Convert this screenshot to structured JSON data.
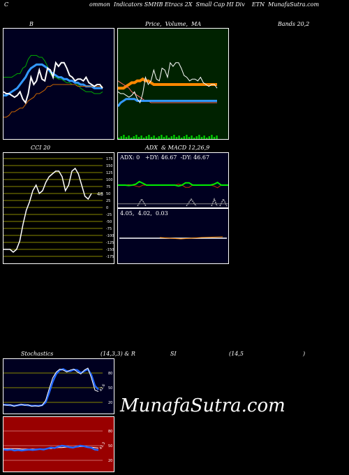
{
  "header": {
    "left_c": "C",
    "title": "ommon  Indicators SMHB Etracs 2X  Small Cap HI Div    ETN  MunafaSutra.com"
  },
  "labels": {
    "b": "B",
    "price_ma": "Price,  Volume,  MA",
    "bands": "Bands 20,2",
    "cci": "CCI 20",
    "adx_macd": "ADX  & MACD 12,26,9",
    "stoch": "Stochastics",
    "stoch_params": "(14,3,3) & R",
    "si": "SI",
    "rsi_params": "(14,5",
    "rsi_close": ")"
  },
  "adx": {
    "text": "ADX: 0   +DY: 46.67  -DY: 46.67"
  },
  "macd": {
    "text": "4.05,  4.02,  0.03"
  },
  "watermark": "MunafaSutra.com",
  "colors": {
    "navy_bg": "#000020",
    "green_bg": "#002200",
    "olive_bg": "#000000",
    "red_bg": "#990000"
  },
  "chart_data": [
    {
      "type": "line",
      "panel": "bollinger",
      "series": [
        {
          "values": [
            74,
            74,
            74,
            74,
            75,
            76,
            76,
            79,
            80,
            84,
            86,
            86,
            86,
            85,
            85,
            83,
            80,
            76,
            74,
            74,
            73,
            73,
            72,
            71,
            71,
            70,
            70,
            70,
            68,
            67,
            66,
            66,
            66,
            65,
            65,
            65,
            66
          ]
        },
        {
          "values": [
            64,
            64,
            65,
            66,
            67,
            68,
            70,
            72,
            74,
            77,
            79,
            80,
            81,
            81,
            81,
            80,
            79,
            77,
            76,
            75,
            74,
            74,
            73,
            73,
            72,
            72,
            71,
            71,
            70,
            70,
            69,
            69,
            69,
            68,
            68,
            68,
            68
          ]
        },
        {
          "values": [
            52,
            52,
            53,
            55,
            55,
            56,
            57,
            57,
            59,
            61,
            62,
            63,
            65,
            65,
            66,
            67,
            69,
            69,
            70,
            70,
            70,
            70,
            70,
            70,
            70,
            70,
            70,
            69,
            69,
            69,
            69,
            69,
            69,
            69,
            69,
            69,
            69
          ]
        },
        {
          "values": [
            66,
            65,
            65,
            64,
            63,
            64,
            66,
            62,
            60,
            65,
            74,
            70,
            72,
            78,
            73,
            72,
            79,
            78,
            74,
            82,
            80,
            82,
            82,
            79,
            75,
            74,
            72,
            73,
            73,
            72,
            74,
            71,
            70,
            69,
            70,
            70,
            68
          ]
        }
      ]
    },
    {
      "type": "line",
      "panel": "price_ma",
      "series": [
        {
          "values": [
            68,
            68,
            68,
            69,
            70,
            71,
            71,
            72,
            72,
            73,
            72,
            72,
            71,
            70,
            70,
            70,
            70,
            70,
            70,
            70,
            70,
            70,
            70,
            70,
            70,
            70,
            70,
            70,
            70,
            70,
            70,
            70,
            70,
            70,
            70,
            70,
            70
          ]
        },
        {
          "values": [
            72,
            71,
            70,
            69,
            68,
            66,
            65,
            64,
            63,
            62,
            61,
            61,
            60,
            60,
            60,
            60,
            60,
            60,
            60,
            60,
            60,
            60,
            60,
            60,
            60,
            60,
            60,
            60,
            60,
            60,
            60,
            60,
            60,
            60,
            60,
            60,
            60
          ]
        },
        {
          "values": [
            58,
            60,
            61,
            62,
            62,
            62,
            62,
            61,
            61,
            61,
            61,
            61,
            61,
            61,
            61,
            61,
            61,
            61,
            61,
            61,
            61,
            61,
            61,
            61,
            61,
            61,
            61,
            61,
            61,
            61,
            61,
            61,
            61,
            61,
            61,
            61,
            61
          ]
        },
        {
          "values": [
            66,
            65,
            65,
            64,
            63,
            64,
            66,
            62,
            60,
            65,
            74,
            70,
            72,
            78,
            73,
            72,
            79,
            78,
            74,
            82,
            80,
            82,
            82,
            79,
            75,
            74,
            72,
            73,
            73,
            72,
            74,
            71,
            70,
            69,
            70,
            70,
            68
          ]
        }
      ]
    },
    {
      "type": "line",
      "panel": "cci",
      "ylabels": [
        "175",
        "150",
        "125",
        "100",
        "75",
        "50",
        "25",
        "0",
        "-25",
        "-50",
        "-75",
        "-100",
        "-125",
        "-150",
        "-175"
      ],
      "last_value": "48",
      "series": [
        {
          "values": [
            -150,
            -150,
            -150,
            -160,
            -150,
            -120,
            -60,
            -10,
            20,
            60,
            80,
            50,
            60,
            90,
            110,
            120,
            130,
            130,
            110,
            60,
            80,
            130,
            140,
            120,
            80,
            40,
            30,
            50
          ]
        }
      ]
    },
    {
      "type": "line",
      "panel": "adx",
      "series": [
        {
          "values": [
            50,
            50,
            50,
            49,
            50,
            52,
            58,
            54,
            50,
            50,
            50,
            50,
            50,
            50,
            50,
            50,
            50,
            48,
            50,
            55,
            55,
            50,
            50,
            50,
            50,
            50,
            50,
            52,
            56,
            50,
            50,
            50
          ]
        },
        {
          "values": [
            50,
            50,
            50,
            51,
            50,
            48,
            46,
            50,
            50,
            50,
            50,
            50,
            50,
            50,
            50,
            50,
            50,
            52,
            50,
            45,
            45,
            50,
            50,
            50,
            50,
            50,
            50,
            48,
            44,
            50,
            50,
            50
          ]
        },
        {
          "values": [
            0,
            0,
            0,
            0,
            0,
            0,
            0,
            0,
            0,
            0,
            0,
            0,
            0,
            0,
            0,
            0,
            0,
            0,
            0,
            0,
            0,
            0,
            0,
            0,
            0,
            0,
            0,
            0,
            0,
            0,
            0,
            0
          ]
        }
      ]
    },
    {
      "type": "line",
      "panel": "stochastics",
      "ylabels": [
        "80",
        "50",
        "20"
      ],
      "last_value": "42.6",
      "series": [
        {
          "values": [
            15,
            14,
            15,
            12,
            14,
            16,
            14,
            15,
            12,
            13,
            12,
            14,
            24,
            48,
            70,
            82,
            88,
            86,
            82,
            86,
            88,
            82,
            78,
            86,
            90,
            70,
            45,
            42
          ]
        },
        {
          "values": [
            15,
            15,
            14,
            13,
            14,
            15,
            15,
            14,
            13,
            13,
            13,
            14,
            20,
            40,
            62,
            78,
            86,
            88,
            84,
            84,
            87,
            86,
            80,
            84,
            88,
            76,
            54,
            46
          ]
        }
      ]
    },
    {
      "type": "line",
      "panel": "rsi",
      "ylabels": [
        "80",
        "50",
        "20"
      ],
      "last_value": "41.3",
      "series": [
        {
          "values": [
            42,
            41,
            42,
            40,
            41,
            40,
            41,
            42,
            41,
            42,
            43,
            42,
            44,
            46,
            45,
            48,
            50,
            49,
            47,
            46,
            48,
            50,
            49,
            47,
            46,
            42,
            41
          ]
        },
        {
          "values": [
            44,
            44,
            44,
            44,
            44,
            43,
            43,
            43,
            43,
            43,
            43,
            43,
            44,
            44,
            45,
            46,
            46,
            47,
            47,
            47,
            47,
            48,
            48,
            47,
            47,
            46,
            45
          ]
        }
      ]
    }
  ]
}
